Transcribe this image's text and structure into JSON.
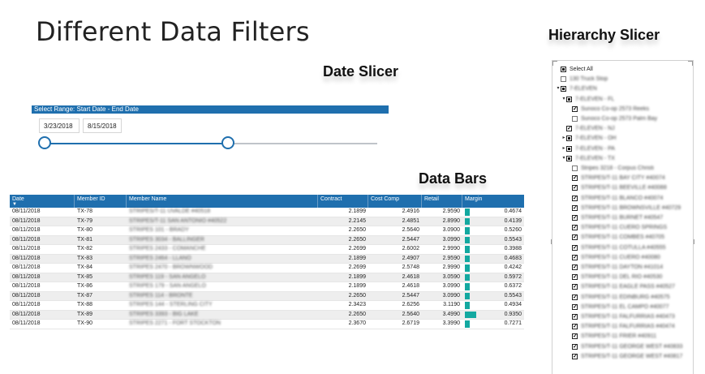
{
  "page_title": "Different Data Filters",
  "date_slicer": {
    "title": "Date Slicer",
    "header": "Select Range: Start Date - End Date",
    "start_date": "3/23/2018",
    "end_date": "8/15/2018",
    "range_fraction": [
      0.0,
      0.55
    ]
  },
  "data_bars": {
    "title": "Data Bars",
    "columns": [
      "Date",
      "Member ID",
      "Member Name",
      "Contract",
      "Cost Comp",
      "Retail",
      "Margin"
    ],
    "rows": [
      {
        "date": "08/11/2018",
        "id": "TX-78",
        "name": "STRIPES/T-11 UVALDE #40518",
        "contract": "2.1899",
        "cost": "2.4916",
        "retail": "2.9590",
        "margin": "0.4674"
      },
      {
        "date": "08/11/2018",
        "id": "TX-79",
        "name": "STRIPES/T-11 SAN ANTONIO #40522",
        "contract": "2.2145",
        "cost": "2.4851",
        "retail": "2.8990",
        "margin": "0.4139"
      },
      {
        "date": "08/11/2018",
        "id": "TX-80",
        "name": "STRIPES 101 - BRADY",
        "contract": "2.2650",
        "cost": "2.5640",
        "retail": "3.0900",
        "margin": "0.5260"
      },
      {
        "date": "08/11/2018",
        "id": "TX-81",
        "name": "STRIPES 3034 - BALLINGER",
        "contract": "2.2650",
        "cost": "2.5447",
        "retail": "3.0990",
        "margin": "0.5543"
      },
      {
        "date": "08/11/2018",
        "id": "TX-82",
        "name": "STRIPES 2433 - COMANCHE",
        "contract": "2.2699",
        "cost": "2.6002",
        "retail": "2.9990",
        "margin": "0.3988"
      },
      {
        "date": "08/11/2018",
        "id": "TX-83",
        "name": "STRIPES 2464 - LLANO",
        "contract": "2.1899",
        "cost": "2.4907",
        "retail": "2.9590",
        "margin": "0.4683"
      },
      {
        "date": "08/11/2018",
        "id": "TX-84",
        "name": "STRIPES 2470 - BROWNWOOD",
        "contract": "2.2699",
        "cost": "2.5748",
        "retail": "2.9990",
        "margin": "0.4242"
      },
      {
        "date": "08/11/2018",
        "id": "TX-85",
        "name": "STRIPES 119 - SAN ANGELO",
        "contract": "2.1899",
        "cost": "2.4618",
        "retail": "3.0590",
        "margin": "0.5972"
      },
      {
        "date": "08/11/2018",
        "id": "TX-86",
        "name": "STRIPES 179 - SAN ANGELO",
        "contract": "2.1899",
        "cost": "2.4618",
        "retail": "3.0990",
        "margin": "0.6372"
      },
      {
        "date": "08/11/2018",
        "id": "TX-87",
        "name": "STRIPES 114 - BRONTE",
        "contract": "2.2650",
        "cost": "2.5447",
        "retail": "3.0990",
        "margin": "0.5543"
      },
      {
        "date": "08/11/2018",
        "id": "TX-88",
        "name": "STRIPES 144 - STERLING CITY",
        "contract": "2.3423",
        "cost": "2.6256",
        "retail": "3.1190",
        "margin": "0.4934"
      },
      {
        "date": "08/11/2018",
        "id": "TX-89",
        "name": "STRIPES 3393 - BIG LAKE",
        "contract": "2.2650",
        "cost": "2.5640",
        "retail": "3.4990",
        "margin": "0.9350"
      },
      {
        "date": "08/11/2018",
        "id": "TX-90",
        "name": "STRIPES 2271 - FORT STOCKTON",
        "contract": "2.3670",
        "cost": "2.6719",
        "retail": "3.3990",
        "margin": "0.7271"
      }
    ]
  },
  "hierarchy_slicer": {
    "title": "Hierarchy Slicer",
    "items": [
      {
        "label": "Select All",
        "level": 0,
        "state": "partial",
        "toggle": "",
        "blur": false
      },
      {
        "label": "130 Truck Stop",
        "level": 0,
        "state": "empty",
        "toggle": "",
        "blur": true
      },
      {
        "label": "7-ELEVEN",
        "level": 0,
        "state": "partial",
        "toggle": "▾",
        "blur": true
      },
      {
        "label": "7-ELEVEN - FL",
        "level": 1,
        "state": "partial",
        "toggle": "▾",
        "blur": true
      },
      {
        "label": "Sunoco Co-op 2573 Reeks",
        "level": 2,
        "state": "checked",
        "toggle": "",
        "blur": true
      },
      {
        "label": "Sunoco Co-op 2573 Palm Bay",
        "level": 2,
        "state": "empty",
        "toggle": "",
        "blur": true
      },
      {
        "label": "7-ELEVEN - NJ",
        "level": 1,
        "state": "checked",
        "toggle": "",
        "blur": true
      },
      {
        "label": "7-ELEVEN - OH",
        "level": 1,
        "state": "partial",
        "toggle": "▸",
        "blur": true
      },
      {
        "label": "7-ELEVEN - PA",
        "level": 1,
        "state": "partial",
        "toggle": "▸",
        "blur": true
      },
      {
        "label": "7-ELEVEN - TX",
        "level": 1,
        "state": "partial",
        "toggle": "▾",
        "blur": true
      },
      {
        "label": "Stripes 3218 - Corpus Christi",
        "level": 2,
        "state": "empty",
        "toggle": "",
        "blur": true
      },
      {
        "label": "STRIPES/T-11 BAY CITY #40074",
        "level": 2,
        "state": "checked",
        "toggle": "",
        "blur": true
      },
      {
        "label": "STRIPES/T-11 BEEVILLE #40088",
        "level": 2,
        "state": "checked",
        "toggle": "",
        "blur": true
      },
      {
        "label": "STRIPES/T-11 BLANCO #40074",
        "level": 2,
        "state": "checked",
        "toggle": "",
        "blur": true
      },
      {
        "label": "STRIPES/T-11 BROWNSVILLE #40729",
        "level": 2,
        "state": "checked",
        "toggle": "",
        "blur": true
      },
      {
        "label": "STRIPES/T-11 BURNET #40547",
        "level": 2,
        "state": "checked",
        "toggle": "",
        "blur": true
      },
      {
        "label": "STRIPES/T-11 CUERO SPRINGS",
        "level": 2,
        "state": "checked",
        "toggle": "",
        "blur": true
      },
      {
        "label": "STRIPES/T-11 COMBES #40705",
        "level": 2,
        "state": "checked",
        "toggle": "",
        "blur": true
      },
      {
        "label": "STRIPES/T-11 COTULLA #40555",
        "level": 2,
        "state": "checked",
        "toggle": "",
        "blur": true
      },
      {
        "label": "STRIPES/T-11 CUERO #40080",
        "level": 2,
        "state": "checked",
        "toggle": "",
        "blur": true
      },
      {
        "label": "STRIPES/T-11 DAYTON #41014",
        "level": 2,
        "state": "checked",
        "toggle": "",
        "blur": true
      },
      {
        "label": "STRIPES/T-11 DEL RIO #40530",
        "level": 2,
        "state": "checked",
        "toggle": "",
        "blur": true
      },
      {
        "label": "STRIPES/T-11 EAGLE PASS #40527",
        "level": 2,
        "state": "checked",
        "toggle": "",
        "blur": true
      },
      {
        "label": "STRIPES/T-11 EDINBURG #40575",
        "level": 2,
        "state": "checked",
        "toggle": "",
        "blur": true
      },
      {
        "label": "STRIPES/T-11 EL CAMPO #40077",
        "level": 2,
        "state": "checked",
        "toggle": "",
        "blur": true
      },
      {
        "label": "STRIPES/T-11 FALFURRIAS #40473",
        "level": 2,
        "state": "checked",
        "toggle": "",
        "blur": true
      },
      {
        "label": "STRIPES/T-11 FALFURRIAS #40474",
        "level": 2,
        "state": "checked",
        "toggle": "",
        "blur": true
      },
      {
        "label": "STRIPES/T-11 FRIER #40911",
        "level": 2,
        "state": "checked",
        "toggle": "",
        "blur": true
      },
      {
        "label": "STRIPES/T-11 GEORGE WEST #40833",
        "level": 2,
        "state": "checked",
        "toggle": "",
        "blur": true
      },
      {
        "label": "STRIPES/T-11 GEORGE WEST #40817",
        "level": 2,
        "state": "checked",
        "toggle": "",
        "blur": true
      }
    ]
  }
}
